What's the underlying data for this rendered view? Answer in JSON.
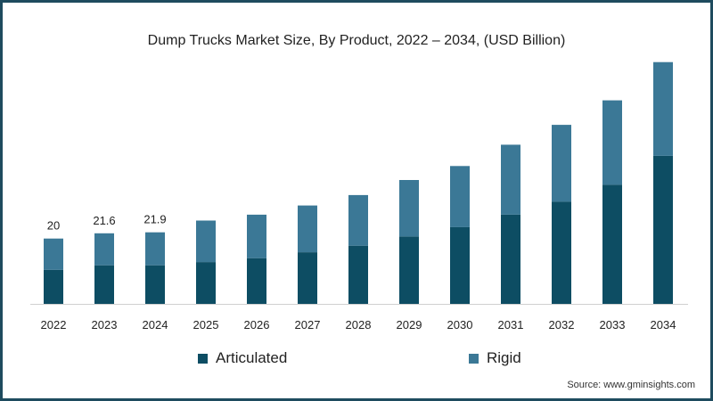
{
  "chart_data": {
    "type": "bar",
    "stacked": true,
    "title": "Dump Trucks Market Size, By Product, 2022 – 2034, (USD Billion)",
    "xlabel": "",
    "ylabel": "",
    "categories": [
      "2022",
      "2023",
      "2024",
      "2025",
      "2026",
      "2027",
      "2028",
      "2029",
      "2030",
      "2031",
      "2032",
      "2033",
      "2034"
    ],
    "series": [
      {
        "name": "Articulated",
        "color": "#0d4d63",
        "values": [
          10.4,
          11.8,
          11.8,
          12.8,
          14.0,
          15.8,
          17.8,
          20.6,
          23.5,
          27.3,
          31.3,
          36.5,
          45.3
        ]
      },
      {
        "name": "Rigid",
        "color": "#3b7896",
        "values": [
          9.6,
          9.8,
          10.1,
          12.7,
          13.3,
          14.3,
          15.5,
          17.3,
          18.7,
          21.4,
          23.5,
          25.8,
          28.7
        ]
      }
    ],
    "data_labels": [
      "20",
      "21.6",
      "21.9",
      "",
      "",
      "",
      "",
      "",
      "",
      "",
      "",
      "",
      ""
    ],
    "ylim": [
      0,
      75
    ],
    "grid": false,
    "legend_position": "bottom"
  },
  "source": "Source: www.gminsights.com"
}
